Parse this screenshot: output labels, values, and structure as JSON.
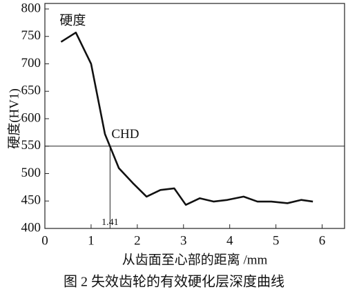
{
  "chart_data": {
    "type": "line",
    "caption": "图 2  失效齿轮的有效硬化层深度曲线",
    "x_label": "从齿面至心部的距离 /mm",
    "y_label": "硬度(HV1)",
    "annotation": "CHD",
    "reference_y": 550,
    "reference_x": 1.41,
    "x": [
      0.35,
      0.67,
      1.0,
      1.3,
      1.6,
      1.9,
      2.2,
      2.5,
      2.8,
      3.05,
      3.35,
      3.65,
      3.95,
      4.3,
      4.6,
      4.9,
      5.25,
      5.55,
      5.8
    ],
    "series": [
      {
        "name": "硬度",
        "color": "#111111",
        "values": [
          740,
          757,
          700,
          572,
          510,
          483,
          458,
          470,
          473,
          443,
          455,
          449,
          452,
          458,
          449,
          449,
          446,
          452,
          449
        ]
      }
    ],
    "xlim": [
      0,
      6.5
    ],
    "xticks": [
      0,
      1,
      2,
      3,
      4,
      5,
      6
    ],
    "ylim": [
      400,
      800
    ],
    "yticks": [
      400,
      450,
      500,
      550,
      600,
      650,
      700,
      750,
      800
    ]
  }
}
